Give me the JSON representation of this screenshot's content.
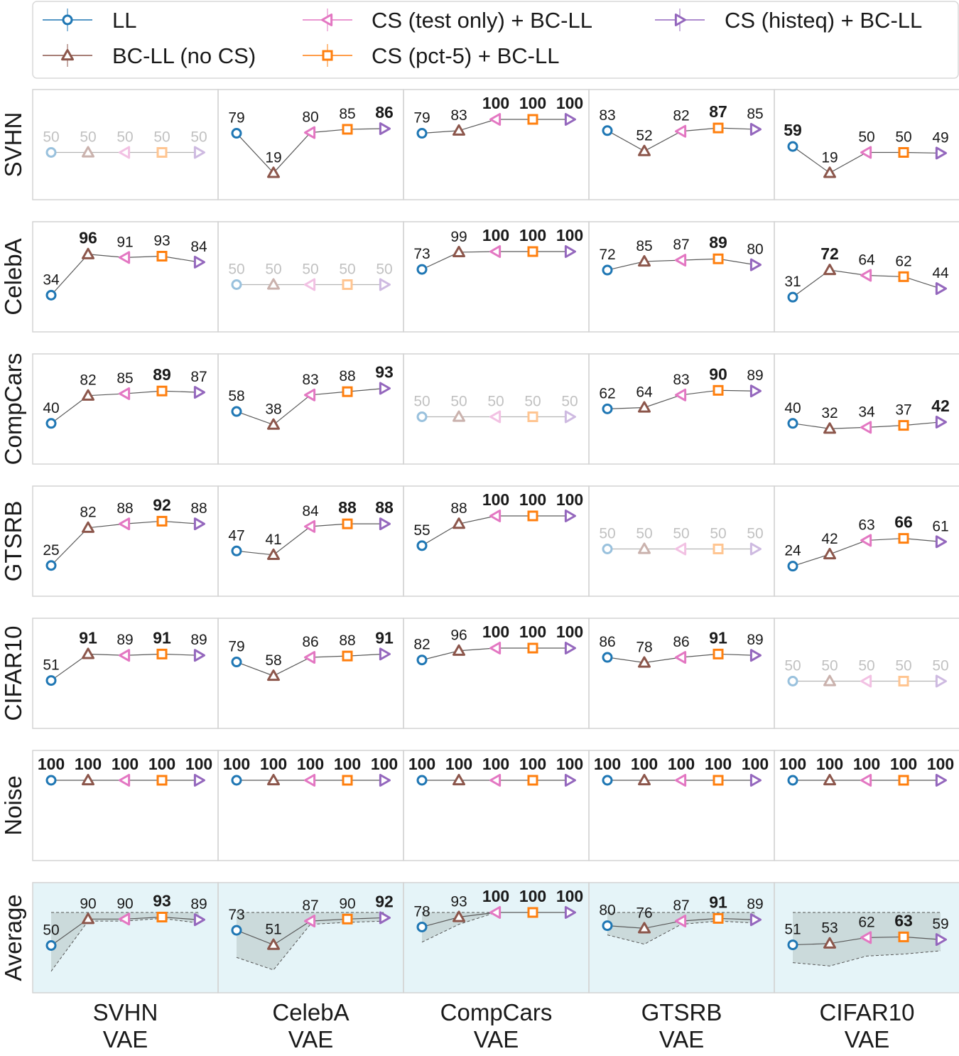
{
  "legend": {
    "items": [
      {
        "label": "LL",
        "marker": "circle",
        "color": "#1f77b4"
      },
      {
        "label": "BC-LL (no CS)",
        "marker": "triangle-up",
        "color": "#8c564b"
      },
      {
        "label": "CS (test only) +  BC-LL",
        "marker": "triangle-left",
        "color": "#e377c2"
      },
      {
        "label": "CS (pct-5) + BC-LL",
        "marker": "square",
        "color": "#ff7f0e"
      },
      {
        "label": "CS (histeq) + BC-LL",
        "marker": "triangle-right",
        "color": "#9467bd"
      }
    ]
  },
  "chart_data": {
    "type": "line",
    "rows": [
      "SVHN",
      "CelebA",
      "CompCars",
      "GTSRB",
      "CIFAR10",
      "Noise",
      "Average"
    ],
    "columns": [
      {
        "line1": "SVHN",
        "line2": "VAE"
      },
      {
        "line1": "CelebA",
        "line2": "VAE"
      },
      {
        "line1": "CompCars",
        "line2": "VAE"
      },
      {
        "line1": "GTSRB",
        "line2": "VAE"
      },
      {
        "line1": "CIFAR10",
        "line2": "VAE"
      }
    ],
    "series_order": [
      "LL",
      "BC-LL (no CS)",
      "CS (test only) +  BC-LL",
      "CS (pct-5) + BC-LL",
      "CS (histeq) + BC-LL"
    ],
    "ylim": [
      0,
      100
    ],
    "values": [
      [
        [
          50,
          50,
          50,
          50,
          50
        ],
        [
          79,
          19,
          80,
          85,
          86
        ],
        [
          79,
          83,
          100,
          100,
          100
        ],
        [
          83,
          52,
          82,
          87,
          85
        ],
        [
          59,
          19,
          50,
          50,
          49
        ]
      ],
      [
        [
          34,
          96,
          91,
          93,
          84
        ],
        [
          50,
          50,
          50,
          50,
          50
        ],
        [
          73,
          99,
          100,
          100,
          100
        ],
        [
          72,
          85,
          87,
          89,
          80
        ],
        [
          31,
          72,
          64,
          62,
          44
        ]
      ],
      [
        [
          40,
          82,
          85,
          89,
          87
        ],
        [
          58,
          38,
          83,
          88,
          93
        ],
        [
          50,
          50,
          50,
          50,
          50
        ],
        [
          62,
          64,
          83,
          90,
          89
        ],
        [
          40,
          32,
          34,
          37,
          42
        ]
      ],
      [
        [
          25,
          82,
          88,
          92,
          88
        ],
        [
          47,
          41,
          84,
          88,
          88
        ],
        [
          55,
          88,
          100,
          100,
          100
        ],
        [
          50,
          50,
          50,
          50,
          50
        ],
        [
          24,
          42,
          63,
          66,
          61
        ]
      ],
      [
        [
          51,
          91,
          89,
          91,
          89
        ],
        [
          79,
          58,
          86,
          88,
          91
        ],
        [
          82,
          96,
          100,
          100,
          100
        ],
        [
          86,
          78,
          86,
          91,
          89
        ],
        [
          50,
          50,
          50,
          50,
          50
        ]
      ],
      [
        [
          100,
          100,
          100,
          100,
          100
        ],
        [
          100,
          100,
          100,
          100,
          100
        ],
        [
          100,
          100,
          100,
          100,
          100
        ],
        [
          100,
          100,
          100,
          100,
          100
        ],
        [
          100,
          100,
          100,
          100,
          100
        ]
      ],
      [
        [
          50,
          90,
          90,
          93,
          89
        ],
        [
          73,
          51,
          87,
          90,
          92
        ],
        [
          78,
          93,
          100,
          100,
          100
        ],
        [
          80,
          76,
          87,
          91,
          89
        ],
        [
          51,
          53,
          62,
          63,
          59
        ]
      ]
    ],
    "bold": [
      [
        [],
        [
          4
        ],
        [
          2,
          3,
          4
        ],
        [
          3
        ],
        [
          0
        ]
      ],
      [
        [
          1
        ],
        [],
        [
          2,
          3,
          4
        ],
        [
          3
        ],
        [
          1
        ]
      ],
      [
        [
          3
        ],
        [
          4
        ],
        [],
        [
          3
        ],
        [
          4
        ]
      ],
      [
        [
          3
        ],
        [
          3,
          4
        ],
        [
          2,
          3,
          4
        ],
        [],
        [
          3
        ]
      ],
      [
        [
          1,
          3
        ],
        [
          4
        ],
        [
          2,
          3,
          4
        ],
        [
          3
        ],
        []
      ],
      [
        [
          0,
          1,
          2,
          3,
          4
        ],
        [
          0,
          1,
          2,
          3,
          4
        ],
        [
          0,
          1,
          2,
          3,
          4
        ],
        [
          0,
          1,
          2,
          3,
          4
        ],
        [
          0,
          1,
          2,
          3,
          4
        ]
      ],
      [
        [
          3
        ],
        [
          4
        ],
        [
          2,
          3,
          4
        ],
        [
          3
        ],
        [
          3
        ]
      ]
    ],
    "faded_diagonal": true,
    "average_band": [
      {
        "upper": [
          100,
          100,
          100,
          100,
          100
        ],
        "lower": [
          11,
          87,
          87,
          91,
          84
        ]
      },
      {
        "upper": [
          100,
          100,
          100,
          100,
          100
        ],
        "lower": [
          32,
          13,
          82,
          85,
          87
        ]
      },
      {
        "upper": [
          100,
          100,
          100,
          100,
          100
        ],
        "lower": [
          55,
          82,
          100,
          100,
          100
        ]
      },
      {
        "upper": [
          100,
          100,
          100,
          100,
          100
        ],
        "lower": [
          66,
          52,
          82,
          87,
          84
        ]
      },
      {
        "upper": [
          100,
          100,
          100,
          100,
          100
        ],
        "lower": [
          24,
          19,
          34,
          37,
          42
        ]
      }
    ],
    "average_background": "#e5f4f8",
    "band_color": "#c4d3d3"
  }
}
